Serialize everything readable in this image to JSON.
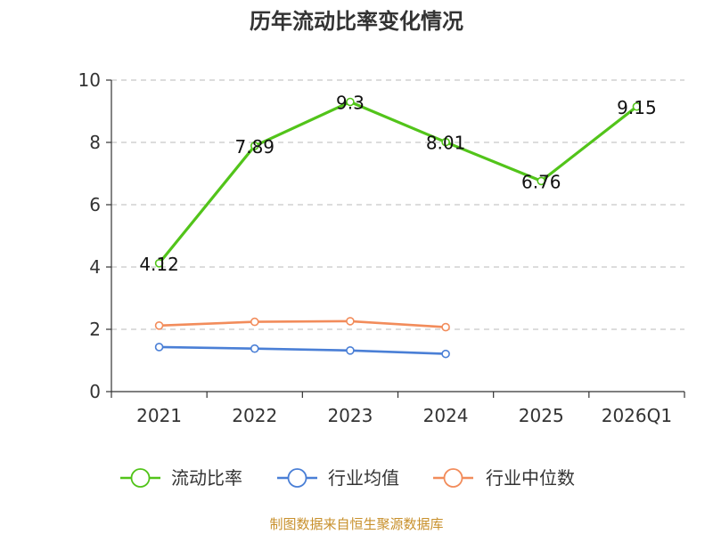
{
  "chart_data": {
    "type": "line",
    "title": "历年流动比率变化情况",
    "categories": [
      "2021",
      "2022",
      "2023",
      "2024",
      "2025",
      "2026Q1"
    ],
    "xlabel": "",
    "ylabel": "",
    "ylim": [
      0,
      10
    ],
    "yticks": [
      0,
      2,
      4,
      6,
      8,
      10
    ],
    "grid": true,
    "legend_position": "bottom",
    "series": [
      {
        "name": "流动比率",
        "color": "#52c41a",
        "values": [
          4.12,
          7.89,
          9.3,
          8.01,
          6.76,
          9.15
        ],
        "labels": [
          "4.12",
          "7.89",
          "9.3",
          "8.01",
          "6.76",
          "9.15"
        ]
      },
      {
        "name": "行业均值",
        "color": "#4a7fd6",
        "values": [
          1.43,
          1.38,
          1.32,
          1.21,
          null,
          null
        ]
      },
      {
        "name": "行业中位数",
        "color": "#f28c5b",
        "values": [
          2.12,
          2.24,
          2.26,
          2.07,
          null,
          null
        ]
      }
    ],
    "source": "制图数据来自恒生聚源数据库"
  }
}
